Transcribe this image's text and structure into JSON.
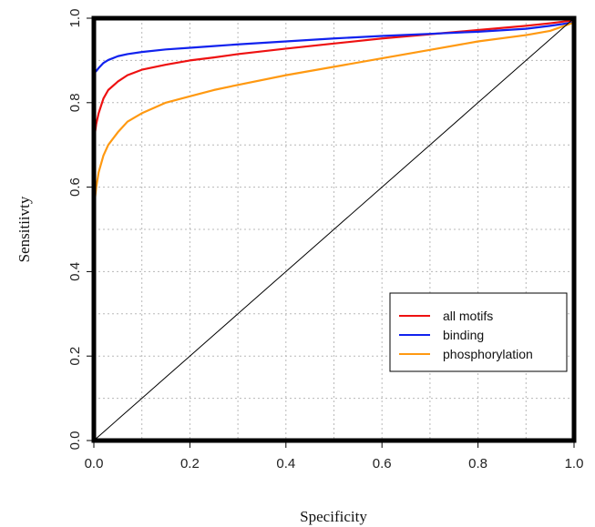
{
  "chart_data": {
    "type": "line",
    "title": "",
    "xlabel": "Specificity",
    "ylabel": "Sensitiivty",
    "xlim": [
      0,
      1
    ],
    "ylim": [
      0,
      1
    ],
    "grid": true,
    "legend_position": "bottom-right",
    "x_ticks": [
      "0.0",
      "0.2",
      "0.4",
      "0.6",
      "0.8",
      "1.0"
    ],
    "y_ticks": [
      "0.0",
      "0.2",
      "0.4",
      "0.6",
      "0.8",
      "1.0"
    ],
    "x": [
      0.0,
      0.005,
      0.01,
      0.02,
      0.03,
      0.05,
      0.07,
      0.1,
      0.15,
      0.2,
      0.25,
      0.3,
      0.4,
      0.5,
      0.6,
      0.7,
      0.8,
      0.9,
      0.95,
      1.0
    ],
    "series": [
      {
        "name": "all motifs",
        "color": "#ee1111",
        "values": [
          0.71,
          0.75,
          0.775,
          0.81,
          0.83,
          0.85,
          0.865,
          0.878,
          0.89,
          0.9,
          0.907,
          0.915,
          0.928,
          0.94,
          0.952,
          0.962,
          0.972,
          0.982,
          0.988,
          0.995
        ]
      },
      {
        "name": "binding",
        "color": "#1122ee",
        "values": [
          0.87,
          0.875,
          0.882,
          0.894,
          0.901,
          0.91,
          0.915,
          0.92,
          0.926,
          0.93,
          0.934,
          0.938,
          0.945,
          0.952,
          0.958,
          0.963,
          0.968,
          0.975,
          0.982,
          0.99
        ]
      },
      {
        "name": "phosphorylation",
        "color": "#ff9911",
        "values": [
          0.55,
          0.6,
          0.635,
          0.675,
          0.7,
          0.73,
          0.755,
          0.775,
          0.8,
          0.815,
          0.83,
          0.842,
          0.865,
          0.885,
          0.905,
          0.925,
          0.945,
          0.96,
          0.97,
          0.99
        ]
      },
      {
        "name": "",
        "color": "#000000",
        "values": [
          0.0,
          0.005,
          0.01,
          0.02,
          0.03,
          0.05,
          0.07,
          0.1,
          0.15,
          0.2,
          0.25,
          0.3,
          0.4,
          0.5,
          0.6,
          0.7,
          0.8,
          0.9,
          0.95,
          1.0
        ]
      }
    ]
  }
}
